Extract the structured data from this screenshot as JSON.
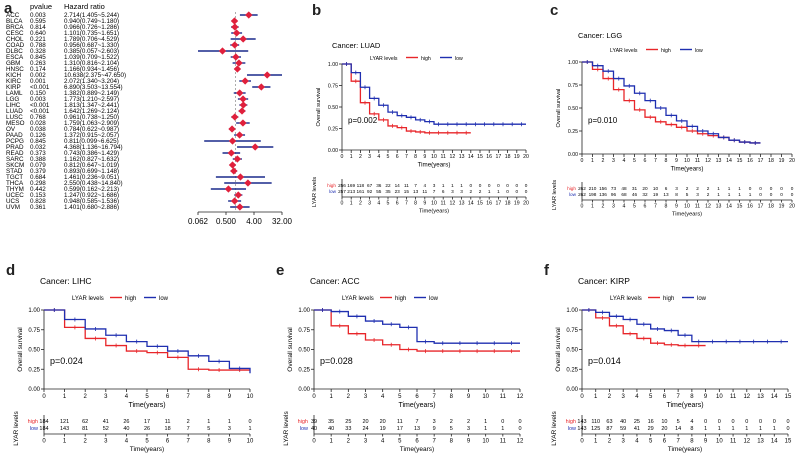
{
  "panel_labels": {
    "a": "a",
    "b": "b",
    "c": "c",
    "d": "d",
    "e": "e",
    "f": "f"
  },
  "colors": {
    "high": "#e8262a",
    "low": "#1f2fb0",
    "forest_line": "#1a2a8c",
    "forest_point": "#e0203c"
  },
  "forest": {
    "header_pvalue": "pvalue",
    "header_hr": "Hazard ratio",
    "xlabel": "Hazard ratio",
    "tick_labels": [
      "0.062",
      "0.500",
      "4.00",
      "32.00"
    ],
    "tick_values": [
      0.0625,
      0.5,
      4,
      32
    ],
    "xlim": [
      0.0625,
      32
    ],
    "rows": [
      {
        "cancer": "ACC",
        "pvalue": "0.003",
        "hr_text": "2.714(1.405~5.244)",
        "hr": 2.714,
        "lo": 1.405,
        "hi": 5.244
      },
      {
        "cancer": "BLCA",
        "pvalue": "0.595",
        "hr_text": "0.940(0.749~1.180)",
        "hr": 0.94,
        "lo": 0.749,
        "hi": 1.18
      },
      {
        "cancer": "BRCA",
        "pvalue": "0.814",
        "hr_text": "0.966(0.726~1.286)",
        "hr": 0.966,
        "lo": 0.726,
        "hi": 1.286
      },
      {
        "cancer": "CESC",
        "pvalue": "0.640",
        "hr_text": "1.101(0.735~1.651)",
        "hr": 1.101,
        "lo": 0.735,
        "hi": 1.651
      },
      {
        "cancer": "CHOL",
        "pvalue": "0.221",
        "hr_text": "1.789(0.706~4.529)",
        "hr": 1.789,
        "lo": 0.706,
        "hi": 4.529
      },
      {
        "cancer": "COAD",
        "pvalue": "0.788",
        "hr_text": "0.956(0.687~1.330)",
        "hr": 0.956,
        "lo": 0.687,
        "hi": 1.33
      },
      {
        "cancer": "DLBC",
        "pvalue": "0.328",
        "hr_text": "0.385(0.057~2.603)",
        "hr": 0.385,
        "lo": 0.057,
        "hi": 2.603
      },
      {
        "cancer": "ESCA",
        "pvalue": "0.845",
        "hr_text": "1.039(0.709~1.522)",
        "hr": 1.039,
        "lo": 0.709,
        "hi": 1.522
      },
      {
        "cancer": "GBM",
        "pvalue": "0.263",
        "hr_text": "1.310(0.816~2.104)",
        "hr": 1.31,
        "lo": 0.816,
        "hi": 2.104
      },
      {
        "cancer": "HNSC",
        "pvalue": "0.174",
        "hr_text": "1.166(0.934~1.456)",
        "hr": 1.166,
        "lo": 0.934,
        "hi": 1.456
      },
      {
        "cancer": "KICH",
        "pvalue": "0.002",
        "hr_text": "10.638(2.375~47.650)",
        "hr": 10.638,
        "lo": 2.375,
        "hi": 47.65
      },
      {
        "cancer": "KIRC",
        "pvalue": "0.001",
        "hr_text": "2.072(1.340~3.204)",
        "hr": 2.072,
        "lo": 1.34,
        "hi": 3.204
      },
      {
        "cancer": "KIRP",
        "pvalue": "<0.001",
        "hr_text": "6.890(3.503~13.554)",
        "hr": 6.89,
        "lo": 3.503,
        "hi": 13.554
      },
      {
        "cancer": "LAML",
        "pvalue": "0.150",
        "hr_text": "1.382(0.889~2.149)",
        "hr": 1.382,
        "lo": 0.889,
        "hi": 2.149
      },
      {
        "cancer": "LGG",
        "pvalue": "0.003",
        "hr_text": "1.773(1.210~2.597)",
        "hr": 1.773,
        "lo": 1.21,
        "hi": 2.597
      },
      {
        "cancer": "LIHC",
        "pvalue": "<0.001",
        "hr_text": "1.813(1.347~2.441)",
        "hr": 1.813,
        "lo": 1.347,
        "hi": 2.441
      },
      {
        "cancer": "LUAD",
        "pvalue": "<0.001",
        "hr_text": "1.642(1.269~2.124)",
        "hr": 1.642,
        "lo": 1.269,
        "hi": 2.124
      },
      {
        "cancer": "LUSC",
        "pvalue": "0.768",
        "hr_text": "0.961(0.738~1.250)",
        "hr": 0.961,
        "lo": 0.738,
        "hi": 1.25
      },
      {
        "cancer": "MESO",
        "pvalue": "0.028",
        "hr_text": "1.759(1.063~2.909)",
        "hr": 1.759,
        "lo": 1.063,
        "hi": 2.909
      },
      {
        "cancer": "OV",
        "pvalue": "0.038",
        "hr_text": "0.784(0.622~0.987)",
        "hr": 0.784,
        "lo": 0.622,
        "hi": 0.987
      },
      {
        "cancer": "PAAD",
        "pvalue": "0.126",
        "hr_text": "1.372(0.915~2.057)",
        "hr": 1.372,
        "lo": 0.915,
        "hi": 2.057
      },
      {
        "cancer": "PCPG",
        "pvalue": "0.845",
        "hr_text": "0.811(0.099~6.625)",
        "hr": 0.811,
        "lo": 0.099,
        "hi": 6.625
      },
      {
        "cancer": "PRAD",
        "pvalue": "0.032",
        "hr_text": "4.368(1.136~16.794)",
        "hr": 4.368,
        "lo": 1.136,
        "hi": 16.794
      },
      {
        "cancer": "READ",
        "pvalue": "0.373",
        "hr_text": "0.743(0.386~1.429)",
        "hr": 0.743,
        "lo": 0.386,
        "hi": 1.429
      },
      {
        "cancer": "SARC",
        "pvalue": "0.388",
        "hr_text": "1.162(0.827~1.632)",
        "hr": 1.162,
        "lo": 0.827,
        "hi": 1.632
      },
      {
        "cancer": "SKCM",
        "pvalue": "0.079",
        "hr_text": "0.812(0.647~1.019)",
        "hr": 0.812,
        "lo": 0.647,
        "hi": 1.019
      },
      {
        "cancer": "STAD",
        "pvalue": "0.379",
        "hr_text": "0.893(0.699~1.148)",
        "hr": 0.893,
        "lo": 0.699,
        "hi": 1.148
      },
      {
        "cancer": "TGCT",
        "pvalue": "0.684",
        "hr_text": "1.461(0.236~9.051)",
        "hr": 1.461,
        "lo": 0.236,
        "hi": 9.051
      },
      {
        "cancer": "THCA",
        "pvalue": "0.298",
        "hr_text": "2.550(0.438~14.840)",
        "hr": 2.55,
        "lo": 0.438,
        "hi": 14.84
      },
      {
        "cancer": "THYM",
        "pvalue": "0.442",
        "hr_text": "0.599(0.162~2.213)",
        "hr": 0.599,
        "lo": 0.162,
        "hi": 2.213
      },
      {
        "cancer": "UCEC",
        "pvalue": "0.153",
        "hr_text": "1.247(0.922~1.686)",
        "hr": 1.247,
        "lo": 0.922,
        "hi": 1.686
      },
      {
        "cancer": "UCS",
        "pvalue": "0.828",
        "hr_text": "0.948(0.585~1.536)",
        "hr": 0.948,
        "lo": 0.585,
        "hi": 1.536
      },
      {
        "cancer": "UVM",
        "pvalue": "0.361",
        "hr_text": "1.401(0.680~2.886)",
        "hr": 1.401,
        "lo": 0.68,
        "hi": 2.886
      }
    ]
  },
  "km_common": {
    "legend_title": "LYAR levels",
    "legend_high": "high",
    "legend_low": "low",
    "ylabel": "Overall survival",
    "xlabel": "Time(years)",
    "risk_ylabel": "LYAR levels",
    "risk_high": "high",
    "risk_low": "low",
    "y_ticks": [
      "0.00",
      "0.25",
      "0.50",
      "0.75",
      "1.00"
    ]
  },
  "chart_data": [
    {
      "type": "forest",
      "title": "",
      "xlabel": "Hazard ratio",
      "xscale": "log2",
      "xlim": [
        0.0625,
        32
      ],
      "note": "see forest.rows for per-cancer HR and 95% CI"
    },
    {
      "type": "line",
      "id": "b",
      "title": "Cancer: LUAD",
      "pvalue": "p=0.002",
      "xlim": [
        0,
        20
      ],
      "ylim": [
        0,
        1
      ],
      "xticks": [
        0,
        1,
        2,
        3,
        4,
        5,
        6,
        7,
        8,
        9,
        10,
        11,
        12,
        13,
        14,
        15,
        16,
        17,
        18,
        19,
        20
      ],
      "series": [
        {
          "name": "high",
          "x": [
            0,
            1,
            2,
            3,
            4,
            5,
            6,
            7,
            8,
            9,
            10,
            11,
            12,
            13,
            14
          ],
          "values": [
            1.0,
            0.8,
            0.55,
            0.42,
            0.35,
            0.28,
            0.26,
            0.22,
            0.21,
            0.2,
            0.2,
            0.2,
            0.2,
            0.2,
            0.2
          ]
        },
        {
          "name": "low",
          "x": [
            0,
            1,
            2,
            3,
            4,
            5,
            6,
            7,
            8,
            9,
            10,
            11,
            12,
            13,
            14,
            15,
            16,
            17,
            18,
            19,
            20
          ],
          "values": [
            1.0,
            0.9,
            0.73,
            0.6,
            0.52,
            0.44,
            0.4,
            0.38,
            0.35,
            0.33,
            0.3,
            0.3,
            0.3,
            0.3,
            0.3,
            0.3,
            0.3,
            0.3,
            0.3,
            0.3,
            0.3
          ]
        }
      ],
      "risk_x": [
        0,
        1,
        2,
        3,
        4,
        5,
        6,
        7,
        8,
        9,
        10,
        11,
        12,
        13,
        14,
        15,
        16,
        17,
        18,
        19,
        20
      ],
      "risk_high": [
        "256",
        "169",
        "118",
        "67",
        "36",
        "22",
        "14",
        "11",
        "7",
        "4",
        "3",
        "1",
        "1",
        "1",
        "0",
        "0",
        "0",
        "0",
        "0",
        "0",
        "0"
      ],
      "risk_low": [
        "257",
        "213",
        "161",
        "92",
        "55",
        "35",
        "23",
        "15",
        "13",
        "11",
        "7",
        "6",
        "3",
        "3",
        "2",
        "2",
        "1",
        "1",
        "0",
        "0",
        "0"
      ]
    },
    {
      "type": "line",
      "id": "c",
      "title": "Cancer: LGG",
      "pvalue": "p=0.010",
      "xlim": [
        0,
        20
      ],
      "ylim": [
        0,
        1
      ],
      "xticks": [
        0,
        1,
        2,
        3,
        4,
        5,
        6,
        7,
        8,
        9,
        10,
        11,
        12,
        13,
        14,
        15,
        16,
        17,
        18,
        19,
        20
      ],
      "series": [
        {
          "name": "high",
          "x": [
            0,
            1,
            2,
            3,
            4,
            5,
            6,
            7,
            8,
            9,
            10,
            11,
            12,
            13,
            14,
            15,
            16,
            17
          ],
          "values": [
            1.0,
            0.92,
            0.82,
            0.7,
            0.58,
            0.48,
            0.4,
            0.35,
            0.32,
            0.29,
            0.25,
            0.22,
            0.2,
            0.18,
            0.15,
            0.13,
            0.12,
            0.12
          ]
        },
        {
          "name": "low",
          "x": [
            0,
            1,
            2,
            3,
            4,
            5,
            6,
            7,
            8,
            9,
            10,
            11,
            12,
            13,
            14,
            15,
            16,
            17
          ],
          "values": [
            1.0,
            0.96,
            0.9,
            0.82,
            0.74,
            0.66,
            0.58,
            0.5,
            0.42,
            0.36,
            0.3,
            0.25,
            0.22,
            0.18,
            0.15,
            0.13,
            0.12,
            0.12
          ]
        }
      ],
      "risk_x": [
        0,
        1,
        2,
        3,
        4,
        5,
        6,
        7,
        8,
        9,
        10,
        11,
        12,
        13,
        14,
        15,
        16,
        17,
        18,
        19,
        20
      ],
      "risk_high": [
        "262",
        "210",
        "156",
        "73",
        "48",
        "31",
        "20",
        "10",
        "6",
        "3",
        "2",
        "2",
        "2",
        "1",
        "1",
        "1",
        "0",
        "0",
        "0",
        "0",
        "0"
      ],
      "risk_low": [
        "262",
        "198",
        "136",
        "96",
        "68",
        "46",
        "32",
        "19",
        "13",
        "8",
        "5",
        "3",
        "2",
        "1",
        "1",
        "1",
        "1",
        "0",
        "0",
        "0",
        "0"
      ]
    },
    {
      "type": "line",
      "id": "d",
      "title": "Cancer: LIHC",
      "pvalue": "p=0.024",
      "xlim": [
        0,
        10
      ],
      "ylim": [
        0,
        1
      ],
      "xticks": [
        0,
        1,
        2,
        3,
        4,
        5,
        6,
        7,
        8,
        9,
        10
      ],
      "series": [
        {
          "name": "high",
          "x": [
            0,
            1,
            2,
            3,
            4,
            5,
            6,
            7,
            8,
            9,
            10
          ],
          "values": [
            1.0,
            0.78,
            0.64,
            0.55,
            0.48,
            0.46,
            0.4,
            0.25,
            0.24,
            0.24,
            0.24
          ]
        },
        {
          "name": "low",
          "x": [
            0,
            1,
            2,
            3,
            4,
            5,
            6,
            7,
            8,
            9,
            10
          ],
          "values": [
            1.0,
            0.88,
            0.76,
            0.68,
            0.6,
            0.54,
            0.48,
            0.42,
            0.35,
            0.26,
            0.2
          ]
        }
      ],
      "risk_x": [
        0,
        1,
        2,
        3,
        4,
        5,
        6,
        7,
        8,
        9,
        10
      ],
      "risk_high": [
        "184",
        "121",
        "62",
        "41",
        "26",
        "17",
        "11",
        "2",
        "1",
        "1",
        "0"
      ],
      "risk_low": [
        "184",
        "143",
        "81",
        "52",
        "40",
        "26",
        "18",
        "7",
        "5",
        "3",
        "1"
      ]
    },
    {
      "type": "line",
      "id": "e",
      "title": "Cancer: ACC",
      "pvalue": "p=0.028",
      "xlim": [
        0,
        12
      ],
      "ylim": [
        0,
        1
      ],
      "xticks": [
        0,
        1,
        2,
        3,
        4,
        5,
        6,
        7,
        8,
        9,
        10,
        11,
        12
      ],
      "series": [
        {
          "name": "high",
          "x": [
            0,
            1,
            2,
            3,
            4,
            5,
            6,
            7,
            8,
            9,
            10,
            11,
            12
          ],
          "values": [
            1.0,
            0.8,
            0.7,
            0.62,
            0.56,
            0.5,
            0.48,
            0.48,
            0.48,
            0.48,
            0.48,
            0.48,
            0.48
          ]
        },
        {
          "name": "low",
          "x": [
            0,
            1,
            2,
            3,
            4,
            5,
            6,
            7,
            8,
            9,
            10,
            11,
            12
          ],
          "values": [
            1.0,
            0.98,
            0.92,
            0.86,
            0.82,
            0.78,
            0.6,
            0.58,
            0.58,
            0.58,
            0.58,
            0.58,
            0.58
          ]
        }
      ],
      "risk_x": [
        0,
        1,
        2,
        3,
        4,
        5,
        6,
        7,
        8,
        9,
        10,
        11,
        12
      ],
      "risk_high": [
        "39",
        "35",
        "25",
        "20",
        "20",
        "11",
        "7",
        "3",
        "2",
        "2",
        "1",
        "0",
        "0"
      ],
      "risk_low": [
        "40",
        "40",
        "33",
        "24",
        "19",
        "17",
        "13",
        "9",
        "5",
        "3",
        "1",
        "1",
        "0"
      ]
    },
    {
      "type": "line",
      "id": "f",
      "title": "Cancer: KIRP",
      "pvalue": "p=0.014",
      "xlim": [
        0,
        15
      ],
      "ylim": [
        0,
        1
      ],
      "xticks": [
        0,
        1,
        2,
        3,
        4,
        5,
        6,
        7,
        8,
        9,
        10,
        11,
        12,
        13,
        14,
        15
      ],
      "series": [
        {
          "name": "high",
          "x": [
            0,
            1,
            2,
            3,
            4,
            5,
            6,
            7,
            8,
            9
          ],
          "values": [
            1.0,
            0.9,
            0.8,
            0.7,
            0.64,
            0.58,
            0.56,
            0.55,
            0.55,
            0.55
          ]
        },
        {
          "name": "low",
          "x": [
            0,
            1,
            2,
            3,
            4,
            5,
            6,
            7,
            8,
            9,
            10,
            11,
            12,
            13,
            14,
            15
          ],
          "values": [
            1.0,
            0.97,
            0.92,
            0.88,
            0.82,
            0.76,
            0.74,
            0.68,
            0.6,
            0.6,
            0.6,
            0.6,
            0.6,
            0.6,
            0.6,
            0.6
          ]
        }
      ],
      "risk_x": [
        0,
        1,
        2,
        3,
        4,
        5,
        6,
        7,
        8,
        9,
        10,
        11,
        12,
        13,
        14,
        15
      ],
      "risk_high": [
        "143",
        "110",
        "63",
        "40",
        "25",
        "16",
        "10",
        "5",
        "4",
        "0",
        "0",
        "0",
        "0",
        "0",
        "0",
        "0"
      ],
      "risk_low": [
        "143",
        "125",
        "87",
        "59",
        "41",
        "29",
        "20",
        "14",
        "8",
        "1",
        "1",
        "1",
        "1",
        "1",
        "1",
        "0"
      ]
    }
  ]
}
